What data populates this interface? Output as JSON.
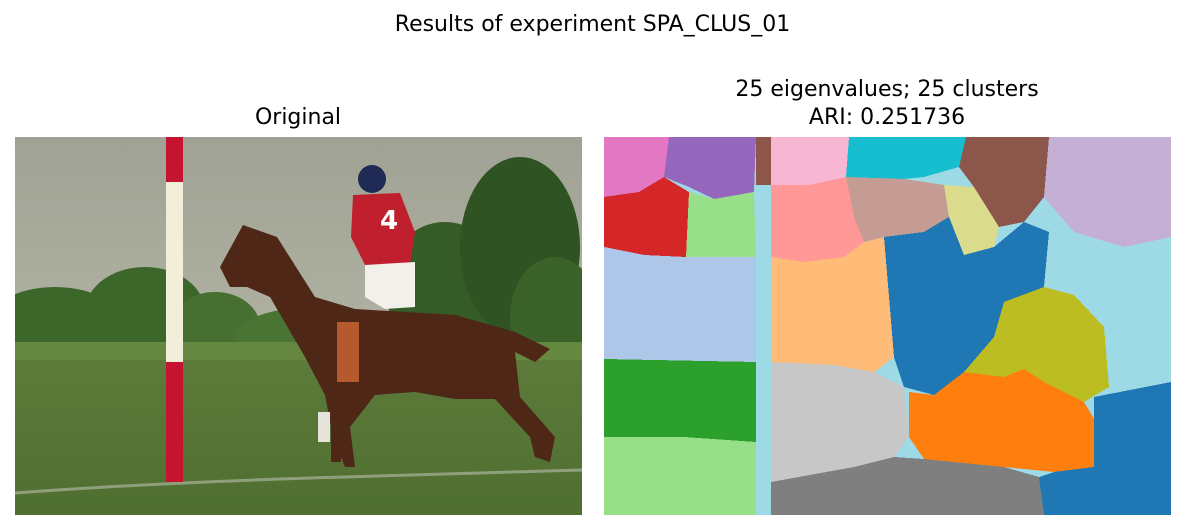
{
  "figure": {
    "title": "Results of experiment SPA_CLUS_01"
  },
  "panels": [
    {
      "title_lines": [
        "Original"
      ],
      "content": "photo-polo-rider-horse-red-pole"
    },
    {
      "title_lines": [
        "25 eigenvalues; 25 clusters",
        "ARI: 0.251736"
      ],
      "content": "segmentation-map-25-clusters"
    }
  ],
  "palette": {
    "sky": "#a7a99a",
    "grass": "#5b7a3a",
    "trees": "#3f6a2c",
    "horse": "#4e2717",
    "jersey": "#c0202e",
    "pole_red": "#c41430",
    "pole_white": "#f3eeda",
    "c_pink": "#e377c2",
    "c_purple": "#9467bd",
    "c_brown": "#8c564b",
    "c_lightpink": "#f7b6d2",
    "c_cyan": "#17becf",
    "c_lavender": "#c5b0d5",
    "c_red": "#d62728",
    "c_lightgreen": "#98df8a",
    "c_lightcyan": "#9edae5",
    "c_salmon": "#ff9896",
    "c_tan": "#c49c94",
    "c_khaki": "#dbdb8d",
    "c_blue": "#1f77b4",
    "c_lightblue": "#aec7e8",
    "c_peach": "#ffbb78",
    "c_olive": "#bcbd22",
    "c_green": "#2ca02c",
    "c_silver": "#c7c7c7",
    "c_orange": "#ff7f0e",
    "c_gray": "#7f7f7f"
  }
}
